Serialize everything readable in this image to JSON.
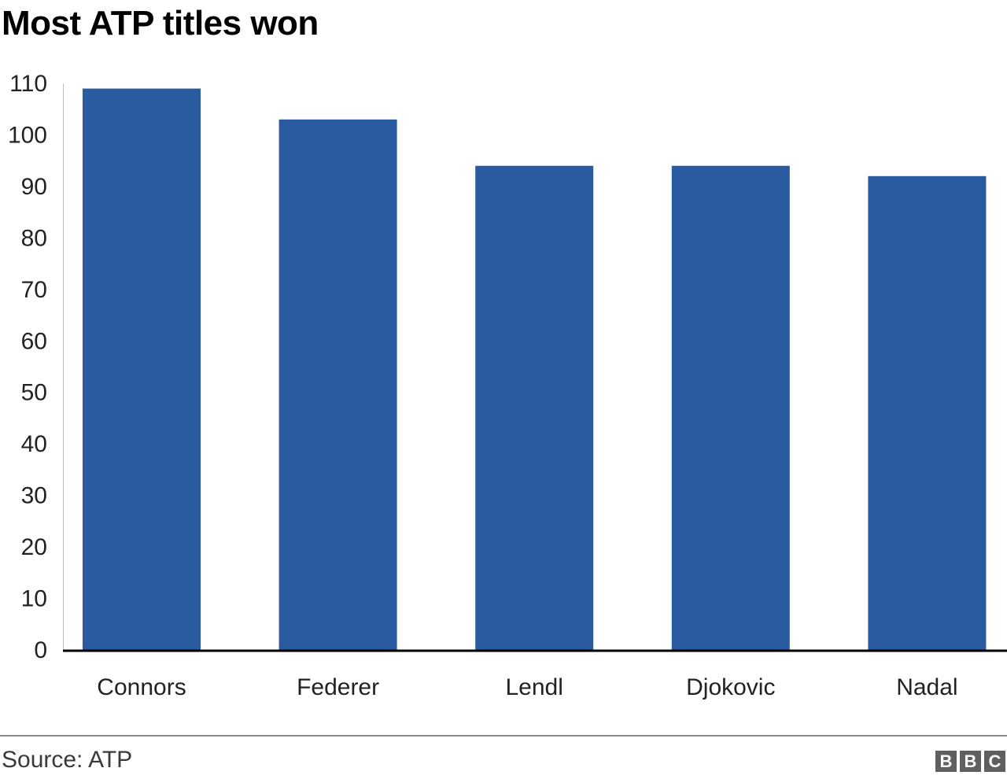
{
  "chart_data": {
    "type": "bar",
    "title": "Most ATP titles won",
    "categories": [
      "Connors",
      "Federer",
      "Lendl",
      "Djokovic",
      "Nadal"
    ],
    "values": [
      109,
      103,
      94,
      94,
      92
    ],
    "ylim": [
      0,
      110
    ],
    "yticks": [
      0,
      10,
      20,
      30,
      40,
      50,
      60,
      70,
      80,
      90,
      100,
      110
    ],
    "xlabel": "",
    "ylabel": "",
    "grid": false,
    "bar_color": "#2a5aa0",
    "axis_color": "#000000"
  },
  "footer": {
    "source": "Source: ATP",
    "logo": [
      "B",
      "B",
      "C"
    ]
  }
}
